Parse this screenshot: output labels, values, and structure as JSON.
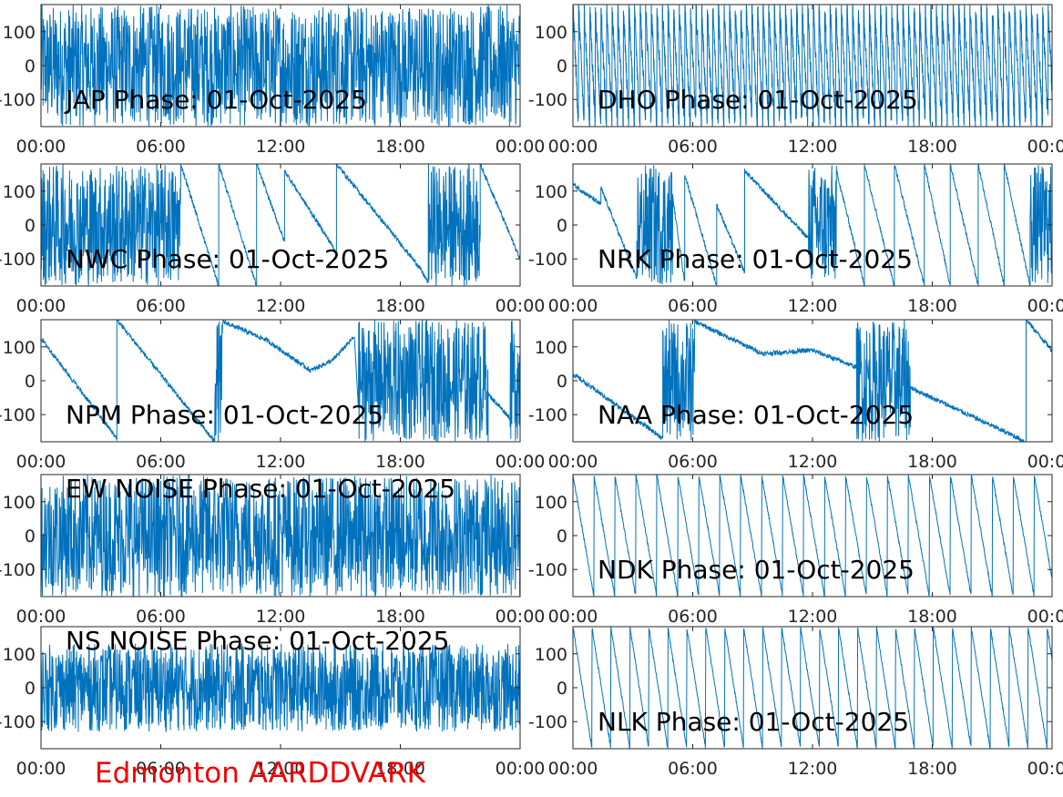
{
  "figure": {
    "footer_text": "Edmonton AARDDVARK",
    "footer_color": "#ee0000",
    "line_color": "#0072bd",
    "axes_color": "#262626"
  },
  "chart_data": [
    {
      "type": "line",
      "title": "JAP Phase: 01-Oct-2025",
      "title_pos": "bottom-left",
      "x_ticks": [
        "00:00",
        "06:00",
        "12:00",
        "18:00",
        "00:00"
      ],
      "x_range_hours": [
        0,
        24
      ],
      "y_ticks": [
        "100",
        "0",
        "-100"
      ],
      "y_tick_values": [
        100,
        0,
        -100
      ],
      "ylim": [
        -180,
        180
      ],
      "pattern": "noise",
      "noise_amp": 180
    },
    {
      "type": "line",
      "title": "DHO Phase: 01-Oct-2025",
      "title_pos": "bottom-left",
      "x_ticks": [
        "00:00",
        "06:00",
        "12:00",
        "18:00",
        "00:00"
      ],
      "x_range_hours": [
        0,
        24
      ],
      "y_ticks": [
        "100",
        "0",
        "-100"
      ],
      "y_tick_values": [
        100,
        0,
        -100
      ],
      "ylim": [
        -180,
        180
      ],
      "pattern": "fast_wrap",
      "period_hours": 0.28
    },
    {
      "type": "line",
      "title": "NWC Phase: 01-Oct-2025",
      "title_pos": "bottom-left",
      "x_ticks": [
        "00:00",
        "06:00",
        "12:00",
        "18:00",
        "00:00"
      ],
      "x_range_hours": [
        0,
        24
      ],
      "y_ticks": [
        "100",
        "0",
        "-100"
      ],
      "y_tick_values": [
        100,
        0,
        -100
      ],
      "ylim": [
        -180,
        180
      ],
      "pattern": "segments",
      "segments": [
        {
          "type": "noise",
          "x": [
            0,
            7.0
          ]
        },
        {
          "type": "line",
          "x": [
            7.0,
            8.9
          ],
          "y": [
            180,
            -180
          ]
        },
        {
          "type": "line",
          "x": [
            8.9,
            10.8
          ],
          "y": [
            180,
            -180
          ]
        },
        {
          "type": "line",
          "x": [
            10.8,
            12.2
          ],
          "y": [
            180,
            -50
          ]
        },
        {
          "type": "line",
          "x": [
            12.2,
            14.8
          ],
          "y": [
            160,
            -80
          ]
        },
        {
          "type": "line",
          "x": [
            14.8,
            18.9
          ],
          "y": [
            180,
            -120
          ]
        },
        {
          "type": "line",
          "x": [
            18.9,
            19.4
          ],
          "y": [
            -120,
            -170
          ]
        },
        {
          "type": "noise",
          "x": [
            19.4,
            22.0
          ]
        },
        {
          "type": "line",
          "x": [
            22.0,
            24
          ],
          "y": [
            180,
            -100
          ]
        }
      ]
    },
    {
      "type": "line",
      "title": "NRK Phase: 01-Oct-2025",
      "title_pos": "bottom-left",
      "x_ticks": [
        "00:00",
        "06:00",
        "12:00",
        "18:00",
        "00:00"
      ],
      "x_range_hours": [
        0,
        24
      ],
      "y_ticks": [
        "100",
        "0",
        "-100"
      ],
      "y_tick_values": [
        100,
        0,
        -100
      ],
      "ylim": [
        -180,
        180
      ],
      "pattern": "segments",
      "segments": [
        {
          "type": "line",
          "x": [
            0,
            1.4
          ],
          "y": [
            120,
            60
          ]
        },
        {
          "type": "line",
          "x": [
            1.4,
            3.2
          ],
          "y": [
            110,
            -160
          ]
        },
        {
          "type": "noise",
          "x": [
            3.2,
            5.0
          ]
        },
        {
          "type": "line",
          "x": [
            5.0,
            5.6
          ],
          "y": [
            80,
            -170
          ]
        },
        {
          "type": "line",
          "x": [
            5.6,
            7.2
          ],
          "y": [
            150,
            -180
          ]
        },
        {
          "type": "line",
          "x": [
            7.2,
            8.6
          ],
          "y": [
            60,
            -140
          ]
        },
        {
          "type": "line",
          "x": [
            8.6,
            11.8
          ],
          "y": [
            160,
            -40
          ]
        },
        {
          "type": "noise",
          "x": [
            11.8,
            13.2
          ]
        },
        {
          "type": "line",
          "x": [
            13.2,
            14.6
          ],
          "y": [
            160,
            -180
          ]
        },
        {
          "type": "line",
          "x": [
            14.6,
            16.1
          ],
          "y": [
            180,
            -180
          ]
        },
        {
          "type": "line",
          "x": [
            16.1,
            17.6
          ],
          "y": [
            180,
            -180
          ]
        },
        {
          "type": "line",
          "x": [
            17.6,
            18.9
          ],
          "y": [
            180,
            -180
          ]
        },
        {
          "type": "line",
          "x": [
            18.9,
            20.3
          ],
          "y": [
            180,
            -180
          ]
        },
        {
          "type": "line",
          "x": [
            20.3,
            21.6
          ],
          "y": [
            180,
            -180
          ]
        },
        {
          "type": "line",
          "x": [
            21.6,
            22.9
          ],
          "y": [
            180,
            -180
          ]
        },
        {
          "type": "noise",
          "x": [
            22.9,
            24
          ]
        }
      ]
    },
    {
      "type": "line",
      "title": "NPM Phase: 01-Oct-2025",
      "title_pos": "bottom-left",
      "x_ticks": [
        "00:00",
        "06:00",
        "12:00",
        "18:00",
        "00:00"
      ],
      "x_range_hours": [
        0,
        24
      ],
      "y_ticks": [
        "100",
        "0",
        "-100"
      ],
      "y_tick_values": [
        100,
        0,
        -100
      ],
      "ylim": [
        -180,
        180
      ],
      "pattern": "segments",
      "segments": [
        {
          "type": "line",
          "x": [
            0,
            3.8
          ],
          "y": [
            125,
            -170
          ]
        },
        {
          "type": "line",
          "x": [
            3.8,
            8.7
          ],
          "y": [
            180,
            -180
          ]
        },
        {
          "type": "noise",
          "x": [
            8.7,
            9.1
          ]
        },
        {
          "type": "line",
          "x": [
            9.1,
            11.3
          ],
          "y": [
            175,
            120
          ]
        },
        {
          "type": "line",
          "x": [
            11.3,
            13.5
          ],
          "y": [
            120,
            30
          ]
        },
        {
          "type": "line",
          "x": [
            13.5,
            14.6
          ],
          "y": [
            30,
            60
          ]
        },
        {
          "type": "line",
          "x": [
            14.6,
            15.7
          ],
          "y": [
            60,
            130
          ]
        },
        {
          "type": "noise",
          "x": [
            15.9,
            22.4
          ]
        },
        {
          "type": "line",
          "x": [
            22.4,
            23.5
          ],
          "y": [
            -40,
            -110
          ]
        },
        {
          "type": "noise",
          "x": [
            23.5,
            24
          ]
        }
      ]
    },
    {
      "type": "line",
      "title": "NAA Phase: 01-Oct-2025",
      "title_pos": "bottom-left",
      "x_ticks": [
        "00:00",
        "06:00",
        "12:00",
        "18:00",
        "00:00"
      ],
      "x_range_hours": [
        0,
        24
      ],
      "y_ticks": [
        "100",
        "0",
        "-100"
      ],
      "y_tick_values": [
        100,
        0,
        -100
      ],
      "ylim": [
        -180,
        180
      ],
      "pattern": "segments",
      "segments": [
        {
          "type": "line",
          "x": [
            0,
            4.5
          ],
          "y": [
            20,
            -170
          ]
        },
        {
          "type": "noise",
          "x": [
            4.5,
            6.1
          ]
        },
        {
          "type": "line",
          "x": [
            6.1,
            9.5
          ],
          "y": [
            175,
            80
          ]
        },
        {
          "type": "line",
          "x": [
            9.5,
            12.0
          ],
          "y": [
            80,
            90
          ]
        },
        {
          "type": "line",
          "x": [
            12.0,
            14.2
          ],
          "y": [
            90,
            40
          ]
        },
        {
          "type": "noise",
          "x": [
            14.2,
            16.9
          ]
        },
        {
          "type": "line",
          "x": [
            16.9,
            22.7
          ],
          "y": [
            -20,
            -180
          ]
        },
        {
          "type": "line",
          "x": [
            22.7,
            24
          ],
          "y": [
            180,
            90
          ]
        }
      ]
    },
    {
      "type": "line",
      "title": "EW NOISE Phase: 01-Oct-2025",
      "title_pos": "top-left",
      "x_ticks": [
        "00:00",
        "06:00",
        "12:00",
        "18:00",
        "00:00"
      ],
      "x_range_hours": [
        0,
        24
      ],
      "y_ticks": [
        "100",
        "0",
        "-100"
      ],
      "y_tick_values": [
        100,
        0,
        -100
      ],
      "ylim": [
        -180,
        180
      ],
      "pattern": "noise",
      "noise_amp": 180
    },
    {
      "type": "line",
      "title": "NDK Phase: 01-Oct-2025",
      "title_pos": "bottom-left",
      "x_ticks": [
        "00:00",
        "06:00",
        "12:00",
        "18:00",
        "00:00"
      ],
      "x_range_hours": [
        0,
        24
      ],
      "y_ticks": [
        "100",
        "0",
        "-100"
      ],
      "y_tick_values": [
        100,
        0,
        -100
      ],
      "ylim": [
        -180,
        180
      ],
      "pattern": "sawtooth",
      "period_hours": 1.05
    },
    {
      "type": "line",
      "title": "NS NOISE Phase: 01-Oct-2025",
      "title_pos": "top-left",
      "x_ticks": [
        "00:00",
        "06:00",
        "12:00",
        "18:00",
        "00:00"
      ],
      "x_range_hours": [
        0,
        24
      ],
      "y_ticks": [
        "100",
        "0",
        "-100"
      ],
      "y_tick_values": [
        100,
        0,
        -100
      ],
      "ylim": [
        -180,
        180
      ],
      "pattern": "noise",
      "noise_amp": 130
    },
    {
      "type": "line",
      "title": "NLK Phase: 01-Oct-2025",
      "title_pos": "bottom-left",
      "x_ticks": [
        "00:00",
        "06:00",
        "12:00",
        "18:00",
        "00:00"
      ],
      "x_range_hours": [
        0,
        24
      ],
      "y_ticks": [
        "100",
        "0",
        "-100"
      ],
      "y_tick_values": [
        100,
        0,
        -100
      ],
      "ylim": [
        -180,
        180
      ],
      "pattern": "sawtooth",
      "period_hours": 0.95
    }
  ]
}
